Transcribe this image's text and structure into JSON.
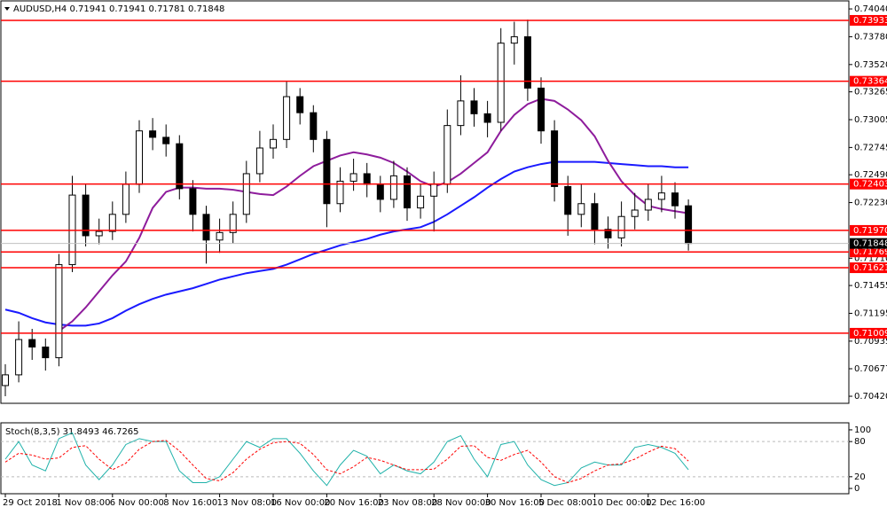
{
  "chart_data": [
    {
      "type": "candlestick",
      "title": "AUDUSD,H4  0.71941 0.71941 0.71781 0.71848",
      "categories": [
        "29 Oct 2018",
        null,
        null,
        null,
        "1 Nov 08:00",
        null,
        null,
        null,
        "6 Nov 00:00",
        null,
        null,
        null,
        "8 Nov 16:00",
        null,
        null,
        null,
        "13 Nov 08:00",
        null,
        null,
        null,
        "16 Nov 00:00",
        null,
        null,
        null,
        "20 Nov 16:00",
        null,
        null,
        null,
        "23 Nov 08:00",
        null,
        null,
        null,
        "28 Nov 00:00",
        null,
        null,
        null,
        "30 Nov 16:00",
        null,
        null,
        null,
        "5 Dec 08:00",
        null,
        null,
        null,
        "10 Dec 00:00",
        null,
        null,
        null,
        "12 Dec 16:00",
        null,
        null,
        null
      ],
      "open": [
        0.7052,
        0.7062,
        0.7095,
        0.7088,
        0.7078,
        0.7165,
        0.723,
        0.7192,
        0.7196,
        0.7212,
        0.724,
        0.729,
        0.7284,
        0.7278,
        0.7236,
        0.7212,
        0.7188,
        0.7195,
        0.7212,
        0.725,
        0.7274,
        0.7282,
        0.7322,
        0.7307,
        0.7282,
        0.7222,
        0.7243,
        0.725,
        0.724,
        0.7226,
        0.7248,
        0.7218,
        0.7229,
        0.724,
        0.7295,
        0.7318,
        0.7306,
        0.7298,
        0.7372,
        0.7378,
        0.733,
        0.729,
        0.7238,
        0.7212,
        0.7222,
        0.7198,
        0.719,
        0.721,
        0.7216,
        0.7226,
        0.7232,
        0.722
      ],
      "high": [
        0.7072,
        0.7112,
        0.7105,
        0.7096,
        0.7175,
        0.7248,
        0.724,
        0.7208,
        0.7224,
        0.7252,
        0.73,
        0.7302,
        0.7296,
        0.7286,
        0.7244,
        0.722,
        0.7208,
        0.7224,
        0.7262,
        0.729,
        0.7296,
        0.7336,
        0.733,
        0.7314,
        0.729,
        0.7256,
        0.7264,
        0.726,
        0.7248,
        0.7262,
        0.7256,
        0.724,
        0.7252,
        0.731,
        0.7342,
        0.733,
        0.7318,
        0.7386,
        0.7392,
        0.7394,
        0.734,
        0.73,
        0.7248,
        0.724,
        0.7232,
        0.721,
        0.7224,
        0.7232,
        0.724,
        0.7248,
        0.7242,
        0.7226
      ],
      "low": [
        0.7042,
        0.7055,
        0.7076,
        0.7066,
        0.707,
        0.7158,
        0.7182,
        0.7184,
        0.7188,
        0.7204,
        0.7232,
        0.7272,
        0.7266,
        0.7226,
        0.7196,
        0.7166,
        0.7176,
        0.7185,
        0.7204,
        0.7242,
        0.7264,
        0.7274,
        0.7296,
        0.727,
        0.72,
        0.7214,
        0.7234,
        0.7228,
        0.7214,
        0.7218,
        0.7206,
        0.7208,
        0.7196,
        0.7232,
        0.7286,
        0.7294,
        0.7284,
        0.729,
        0.7352,
        0.7318,
        0.7278,
        0.7224,
        0.7192,
        0.72,
        0.7184,
        0.718,
        0.7182,
        0.7198,
        0.7206,
        0.7214,
        0.7208,
        0.71781
      ],
      "close": [
        0.7062,
        0.7095,
        0.7088,
        0.7078,
        0.7165,
        0.723,
        0.7192,
        0.7196,
        0.7212,
        0.724,
        0.729,
        0.7284,
        0.7278,
        0.7236,
        0.7212,
        0.7188,
        0.7195,
        0.7212,
        0.725,
        0.7274,
        0.7282,
        0.7322,
        0.7307,
        0.7282,
        0.7222,
        0.7243,
        0.725,
        0.724,
        0.7226,
        0.7248,
        0.7218,
        0.7229,
        0.724,
        0.7295,
        0.7318,
        0.7306,
        0.7298,
        0.7372,
        0.7378,
        0.733,
        0.729,
        0.7238,
        0.7212,
        0.7222,
        0.7198,
        0.719,
        0.721,
        0.7216,
        0.7226,
        0.7232,
        0.722,
        0.71848
      ],
      "series": [
        {
          "color": "#1a1aff",
          "values": [
            0.7123,
            0.712,
            0.7115,
            0.7111,
            0.7109,
            0.7108,
            0.7108,
            0.711,
            0.7115,
            0.7122,
            0.7128,
            0.7133,
            0.7137,
            0.714,
            0.7143,
            0.7147,
            0.7151,
            0.7154,
            0.7157,
            0.7159,
            0.7161,
            0.7165,
            0.717,
            0.7175,
            0.7179,
            0.7183,
            0.7186,
            0.7189,
            0.7193,
            0.7196,
            0.7198,
            0.72,
            0.7205,
            0.7212,
            0.722,
            0.7228,
            0.7237,
            0.7245,
            0.7252,
            0.7256,
            0.7259,
            0.7261,
            0.7261,
            0.7261,
            0.7261,
            0.726,
            0.7259,
            0.7258,
            0.7257,
            0.7257,
            0.7256,
            0.7256
          ]
        },
        {
          "color": "#8e1c9c",
          "values": [
            null,
            null,
            null,
            null,
            0.7103,
            0.7112,
            0.7125,
            0.714,
            0.7155,
            0.7168,
            0.719,
            0.7218,
            0.7233,
            0.7237,
            0.7237,
            0.7236,
            0.7236,
            0.7235,
            0.7233,
            0.7231,
            0.723,
            0.7238,
            0.7248,
            0.7257,
            0.7262,
            0.7267,
            0.727,
            0.7268,
            0.7265,
            0.726,
            0.7252,
            0.7243,
            0.7238,
            0.7242,
            0.725,
            0.726,
            0.727,
            0.729,
            0.7305,
            0.7315,
            0.732,
            0.7318,
            0.731,
            0.73,
            0.7285,
            0.7262,
            0.7243,
            0.723,
            0.722,
            0.7217,
            0.7215,
            0.7213
          ]
        }
      ],
      "levels": [
        {
          "value": 0.73933,
          "label": "0.73933"
        },
        {
          "value": 0.73364,
          "label": "0.73364"
        },
        {
          "value": 0.72403,
          "label": "0.72403"
        },
        {
          "value": 0.7197,
          "label": "0.71970"
        },
        {
          "value": 0.71769,
          "label": "0.71769"
        },
        {
          "value": 0.71621,
          "label": "0.71621"
        },
        {
          "value": 0.71009,
          "label": "0.71009"
        }
      ],
      "level_color": "#ff0000",
      "last_price": {
        "value": 0.71848,
        "label": "0.71848"
      },
      "ylim": [
        0.70354,
        0.74115
      ],
      "yticks": [
        {
          "value": 0.7404,
          "label": "0.74040"
        },
        {
          "value": 0.7378,
          "label": "0.73780"
        },
        {
          "value": 0.7352,
          "label": "0.73520"
        },
        {
          "value": 0.73265,
          "label": "0.73265"
        },
        {
          "value": 0.73005,
          "label": "0.73005"
        },
        {
          "value": 0.72745,
          "label": "0.72745"
        },
        {
          "value": 0.7249,
          "label": "0.72490"
        },
        {
          "value": 0.7223,
          "label": "0.72230"
        },
        {
          "value": 0.7171,
          "label": "0.71710"
        },
        {
          "value": 0.71455,
          "label": "0.71455"
        },
        {
          "value": 0.71195,
          "label": "0.71195"
        },
        {
          "value": 0.70935,
          "label": "0.70935"
        },
        {
          "value": 0.70677,
          "label": "0.70677"
        },
        {
          "value": 0.7042,
          "label": "0.70420"
        }
      ]
    },
    {
      "type": "line",
      "title": "Stoch(8,3,5) 31.8493 46.7265",
      "series": [
        {
          "color": "#20b2aa",
          "dashed": false,
          "values": [
            50,
            80,
            40,
            30,
            85,
            95,
            40,
            15,
            40,
            75,
            85,
            80,
            80,
            30,
            10,
            10,
            20,
            50,
            80,
            70,
            85,
            85,
            60,
            30,
            5,
            40,
            65,
            55,
            25,
            40,
            30,
            25,
            45,
            80,
            90,
            50,
            20,
            75,
            80,
            40,
            15,
            5,
            10,
            35,
            45,
            40,
            40,
            70,
            75,
            70,
            60,
            31.8493
          ]
        },
        {
          "color": "#ff0000",
          "dashed": true,
          "values": [
            45,
            60,
            57,
            50,
            52,
            70,
            73,
            50,
            32,
            43,
            67,
            80,
            82,
            64,
            40,
            17,
            13,
            27,
            50,
            67,
            78,
            80,
            77,
            58,
            32,
            25,
            37,
            53,
            48,
            40,
            32,
            32,
            33,
            50,
            72,
            73,
            53,
            48,
            58,
            65,
            45,
            20,
            10,
            17,
            30,
            40,
            42,
            50,
            62,
            72,
            68,
            46.7265
          ]
        }
      ],
      "levels": [
        20,
        80
      ],
      "ylim": [
        -9,
        112
      ],
      "yticks": [
        0,
        20,
        80,
        100
      ]
    }
  ]
}
